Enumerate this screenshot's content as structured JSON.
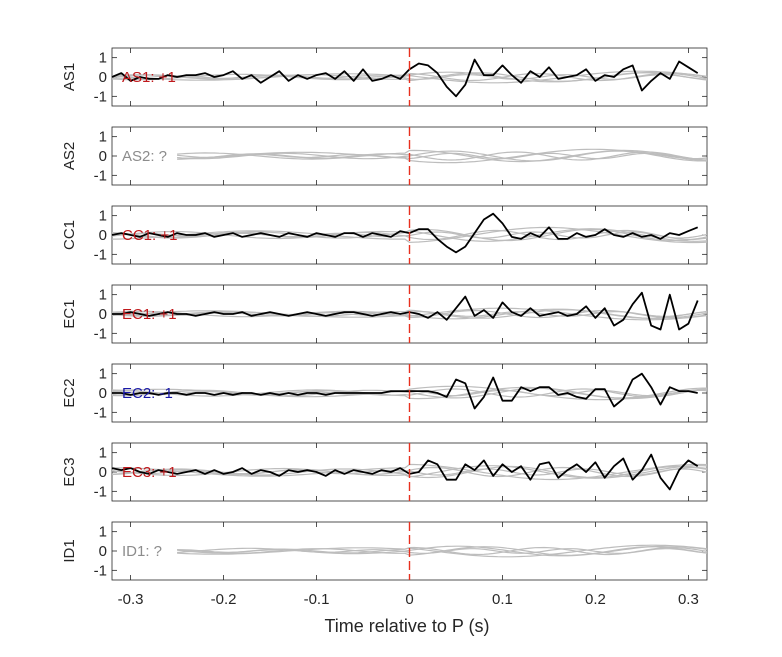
{
  "chart_data": {
    "type": "line",
    "title": "",
    "xlabel": "Time relative to P (s)",
    "xlim": [
      -0.32,
      0.32
    ],
    "xticks": [
      -0.3,
      -0.2,
      -0.1,
      0,
      0.1,
      0.2,
      0.3
    ],
    "xtick_labels": [
      "-0.3",
      "-0.2",
      "-0.1",
      "0",
      "0.1",
      "0.2",
      "0.3"
    ],
    "ylim": [
      -1.5,
      1.5
    ],
    "yticks": [
      -1,
      0,
      1
    ],
    "ytick_labels": [
      "-1",
      "0",
      "1"
    ],
    "grid": false,
    "legend": "none",
    "marker_time": 0,
    "colors": {
      "positive": "#c0191c",
      "negative": "#1a1aa8",
      "unknown": "#8c8c8c",
      "trace": "#000000",
      "background_trace": "#bdbdbd",
      "marker": "#e8301e",
      "axes": "#262626"
    },
    "panels": [
      {
        "station": "AS1",
        "annotation": "AS1: +1",
        "polarity": "positive",
        "x": [
          -0.32,
          -0.31,
          -0.3,
          -0.29,
          -0.28,
          -0.27,
          -0.26,
          -0.25,
          -0.24,
          -0.23,
          -0.22,
          -0.21,
          -0.2,
          -0.19,
          -0.18,
          -0.17,
          -0.16,
          -0.15,
          -0.14,
          -0.13,
          -0.12,
          -0.11,
          -0.1,
          -0.09,
          -0.08,
          -0.07,
          -0.06,
          -0.05,
          -0.04,
          -0.03,
          -0.02,
          -0.01,
          0.0,
          0.01,
          0.02,
          0.03,
          0.04,
          0.05,
          0.06,
          0.07,
          0.08,
          0.09,
          0.1,
          0.11,
          0.12,
          0.13,
          0.14,
          0.15,
          0.16,
          0.17,
          0.18,
          0.19,
          0.2,
          0.21,
          0.22,
          0.23,
          0.24,
          0.25,
          0.26,
          0.27,
          0.28,
          0.29,
          0.3,
          0.31
        ],
        "y": [
          0.0,
          0.2,
          -0.2,
          0.0,
          -0.1,
          -0.1,
          0.1,
          0.0,
          0.1,
          0.1,
          0.2,
          0.0,
          0.1,
          0.3,
          -0.1,
          0.1,
          -0.3,
          0.0,
          0.3,
          -0.2,
          0.1,
          -0.1,
          0.1,
          0.2,
          -0.1,
          0.3,
          -0.2,
          0.4,
          -0.2,
          -0.1,
          0.1,
          -0.1,
          0.4,
          0.7,
          0.6,
          0.2,
          -0.5,
          -1.0,
          -0.4,
          0.9,
          0.1,
          0.1,
          0.6,
          0.1,
          -0.3,
          0.3,
          0.0,
          0.5,
          -0.1,
          0.0,
          0.1,
          0.4,
          -0.2,
          0.1,
          0.0,
          0.4,
          0.6,
          -0.7,
          -0.2,
          0.2,
          -0.1,
          0.8,
          0.5,
          0.2
        ]
      },
      {
        "station": "AS2",
        "annotation": "AS2: ?",
        "polarity": "unknown",
        "x": [],
        "y": []
      },
      {
        "station": "CC1",
        "annotation": "CC1: +1",
        "polarity": "positive",
        "x": [
          -0.32,
          -0.31,
          -0.3,
          -0.29,
          -0.28,
          -0.27,
          -0.26,
          -0.25,
          -0.24,
          -0.23,
          -0.22,
          -0.21,
          -0.2,
          -0.19,
          -0.18,
          -0.17,
          -0.16,
          -0.15,
          -0.14,
          -0.13,
          -0.12,
          -0.11,
          -0.1,
          -0.09,
          -0.08,
          -0.07,
          -0.06,
          -0.05,
          -0.04,
          -0.03,
          -0.02,
          -0.01,
          0.0,
          0.01,
          0.02,
          0.03,
          0.04,
          0.05,
          0.06,
          0.07,
          0.08,
          0.09,
          0.1,
          0.11,
          0.12,
          0.13,
          0.14,
          0.15,
          0.16,
          0.17,
          0.18,
          0.19,
          0.2,
          0.21,
          0.22,
          0.23,
          0.24,
          0.25,
          0.26,
          0.27,
          0.28,
          0.29,
          0.3,
          0.31
        ],
        "y": [
          0.0,
          0.1,
          0.0,
          -0.1,
          0.1,
          0.0,
          -0.1,
          0.1,
          0.0,
          0.0,
          0.1,
          -0.1,
          0.0,
          0.1,
          -0.1,
          0.0,
          0.1,
          0.0,
          -0.1,
          0.1,
          0.0,
          -0.1,
          0.1,
          0.0,
          -0.1,
          0.1,
          0.1,
          -0.1,
          0.1,
          0.0,
          -0.1,
          0.2,
          0.1,
          0.3,
          0.3,
          -0.2,
          -0.6,
          -0.9,
          -0.6,
          0.1,
          0.8,
          1.1,
          0.6,
          -0.1,
          -0.2,
          0.1,
          -0.1,
          0.4,
          -0.2,
          -0.2,
          0.1,
          -0.1,
          0.0,
          0.3,
          0.0,
          -0.1,
          0.1,
          -0.1,
          0.0,
          -0.2,
          0.1,
          0.0,
          0.2,
          0.4
        ]
      },
      {
        "station": "EC1",
        "annotation": "EC1: +1",
        "polarity": "positive",
        "x": [
          -0.32,
          -0.31,
          -0.3,
          -0.29,
          -0.28,
          -0.27,
          -0.26,
          -0.25,
          -0.24,
          -0.23,
          -0.22,
          -0.21,
          -0.2,
          -0.19,
          -0.18,
          -0.17,
          -0.16,
          -0.15,
          -0.14,
          -0.13,
          -0.12,
          -0.11,
          -0.1,
          -0.09,
          -0.08,
          -0.07,
          -0.06,
          -0.05,
          -0.04,
          -0.03,
          -0.02,
          -0.01,
          0.0,
          0.01,
          0.02,
          0.03,
          0.04,
          0.05,
          0.06,
          0.07,
          0.08,
          0.09,
          0.1,
          0.11,
          0.12,
          0.13,
          0.14,
          0.15,
          0.16,
          0.17,
          0.18,
          0.19,
          0.2,
          0.21,
          0.22,
          0.23,
          0.24,
          0.25,
          0.26,
          0.27,
          0.28,
          0.29,
          0.3,
          0.31
        ],
        "y": [
          0.0,
          0.0,
          0.1,
          0.0,
          -0.1,
          0.0,
          0.1,
          0.0,
          0.0,
          -0.1,
          0.0,
          0.1,
          0.0,
          0.0,
          0.1,
          -0.1,
          0.0,
          0.1,
          0.0,
          -0.1,
          0.0,
          0.1,
          0.0,
          -0.1,
          0.0,
          0.1,
          0.1,
          0.0,
          -0.1,
          0.0,
          0.1,
          0.0,
          0.1,
          0.0,
          -0.2,
          0.1,
          -0.3,
          0.3,
          0.9,
          -0.1,
          0.2,
          -0.2,
          0.6,
          0.1,
          -0.1,
          0.3,
          -0.1,
          0.0,
          0.1,
          -0.1,
          0.0,
          0.4,
          -0.2,
          0.3,
          -0.6,
          -0.3,
          0.5,
          1.1,
          -0.6,
          -0.8,
          1.0,
          -0.8,
          -0.5,
          0.7
        ]
      },
      {
        "station": "EC2",
        "annotation": "EC2: -1",
        "polarity": "negative",
        "x": [
          -0.32,
          -0.31,
          -0.3,
          -0.29,
          -0.28,
          -0.27,
          -0.26,
          -0.25,
          -0.24,
          -0.23,
          -0.22,
          -0.21,
          -0.2,
          -0.19,
          -0.18,
          -0.17,
          -0.16,
          -0.15,
          -0.14,
          -0.13,
          -0.12,
          -0.11,
          -0.1,
          -0.09,
          -0.08,
          -0.07,
          -0.06,
          -0.05,
          -0.04,
          -0.03,
          -0.02,
          -0.01,
          0.0,
          0.01,
          0.02,
          0.03,
          0.04,
          0.05,
          0.06,
          0.07,
          0.08,
          0.09,
          0.1,
          0.11,
          0.12,
          0.13,
          0.14,
          0.15,
          0.16,
          0.17,
          0.18,
          0.19,
          0.2,
          0.21,
          0.22,
          0.23,
          0.24,
          0.25,
          0.26,
          0.27,
          0.28,
          0.29,
          0.3,
          0.31
        ],
        "y": [
          0.0,
          0.0,
          -0.1,
          0.0,
          0.0,
          -0.1,
          0.0,
          0.0,
          -0.1,
          0.0,
          0.0,
          -0.1,
          0.0,
          -0.1,
          0.0,
          0.0,
          -0.1,
          0.0,
          -0.1,
          0.0,
          -0.1,
          0.0,
          0.0,
          -0.1,
          0.0,
          0.0,
          0.0,
          0.0,
          0.0,
          0.0,
          0.1,
          0.1,
          0.1,
          0.1,
          0.1,
          0.0,
          -0.2,
          0.7,
          0.5,
          -0.8,
          -0.2,
          0.8,
          -0.4,
          -0.4,
          0.3,
          0.1,
          0.3,
          0.3,
          -0.1,
          0.0,
          -0.2,
          -0.3,
          0.2,
          0.2,
          -0.7,
          -0.3,
          0.7,
          1.0,
          0.3,
          -0.6,
          0.3,
          0.1,
          0.1,
          0.0
        ]
      },
      {
        "station": "EC3",
        "annotation": "EC3: +1",
        "polarity": "positive",
        "x": [
          -0.32,
          -0.31,
          -0.3,
          -0.29,
          -0.28,
          -0.27,
          -0.26,
          -0.25,
          -0.24,
          -0.23,
          -0.22,
          -0.21,
          -0.2,
          -0.19,
          -0.18,
          -0.17,
          -0.16,
          -0.15,
          -0.14,
          -0.13,
          -0.12,
          -0.11,
          -0.1,
          -0.09,
          -0.08,
          -0.07,
          -0.06,
          -0.05,
          -0.04,
          -0.03,
          -0.02,
          -0.01,
          0.0,
          0.01,
          0.02,
          0.03,
          0.04,
          0.05,
          0.06,
          0.07,
          0.08,
          0.09,
          0.1,
          0.11,
          0.12,
          0.13,
          0.14,
          0.15,
          0.16,
          0.17,
          0.18,
          0.19,
          0.2,
          0.21,
          0.22,
          0.23,
          0.24,
          0.25,
          0.26,
          0.27,
          0.28,
          0.29,
          0.3,
          0.31
        ],
        "y": [
          0.2,
          0.1,
          0.2,
          0.0,
          -0.1,
          0.1,
          0.0,
          -0.1,
          0.0,
          0.1,
          -0.1,
          0.1,
          -0.1,
          0.0,
          0.2,
          -0.1,
          0.1,
          0.0,
          -0.2,
          0.1,
          0.0,
          0.1,
          0.0,
          -0.2,
          0.1,
          -0.1,
          0.1,
          0.0,
          -0.1,
          0.1,
          0.0,
          0.2,
          -0.1,
          0.0,
          0.6,
          0.4,
          -0.4,
          -0.4,
          0.4,
          0.1,
          0.6,
          -0.2,
          0.4,
          0.0,
          0.3,
          -0.4,
          0.4,
          0.5,
          -0.3,
          0.1,
          0.4,
          0.0,
          0.5,
          -0.3,
          0.3,
          0.7,
          -0.4,
          0.1,
          0.9,
          -0.3,
          -0.9,
          0.1,
          0.6,
          0.3
        ]
      },
      {
        "station": "ID1",
        "annotation": "ID1: ?",
        "polarity": "unknown",
        "x": [],
        "y": []
      }
    ]
  }
}
